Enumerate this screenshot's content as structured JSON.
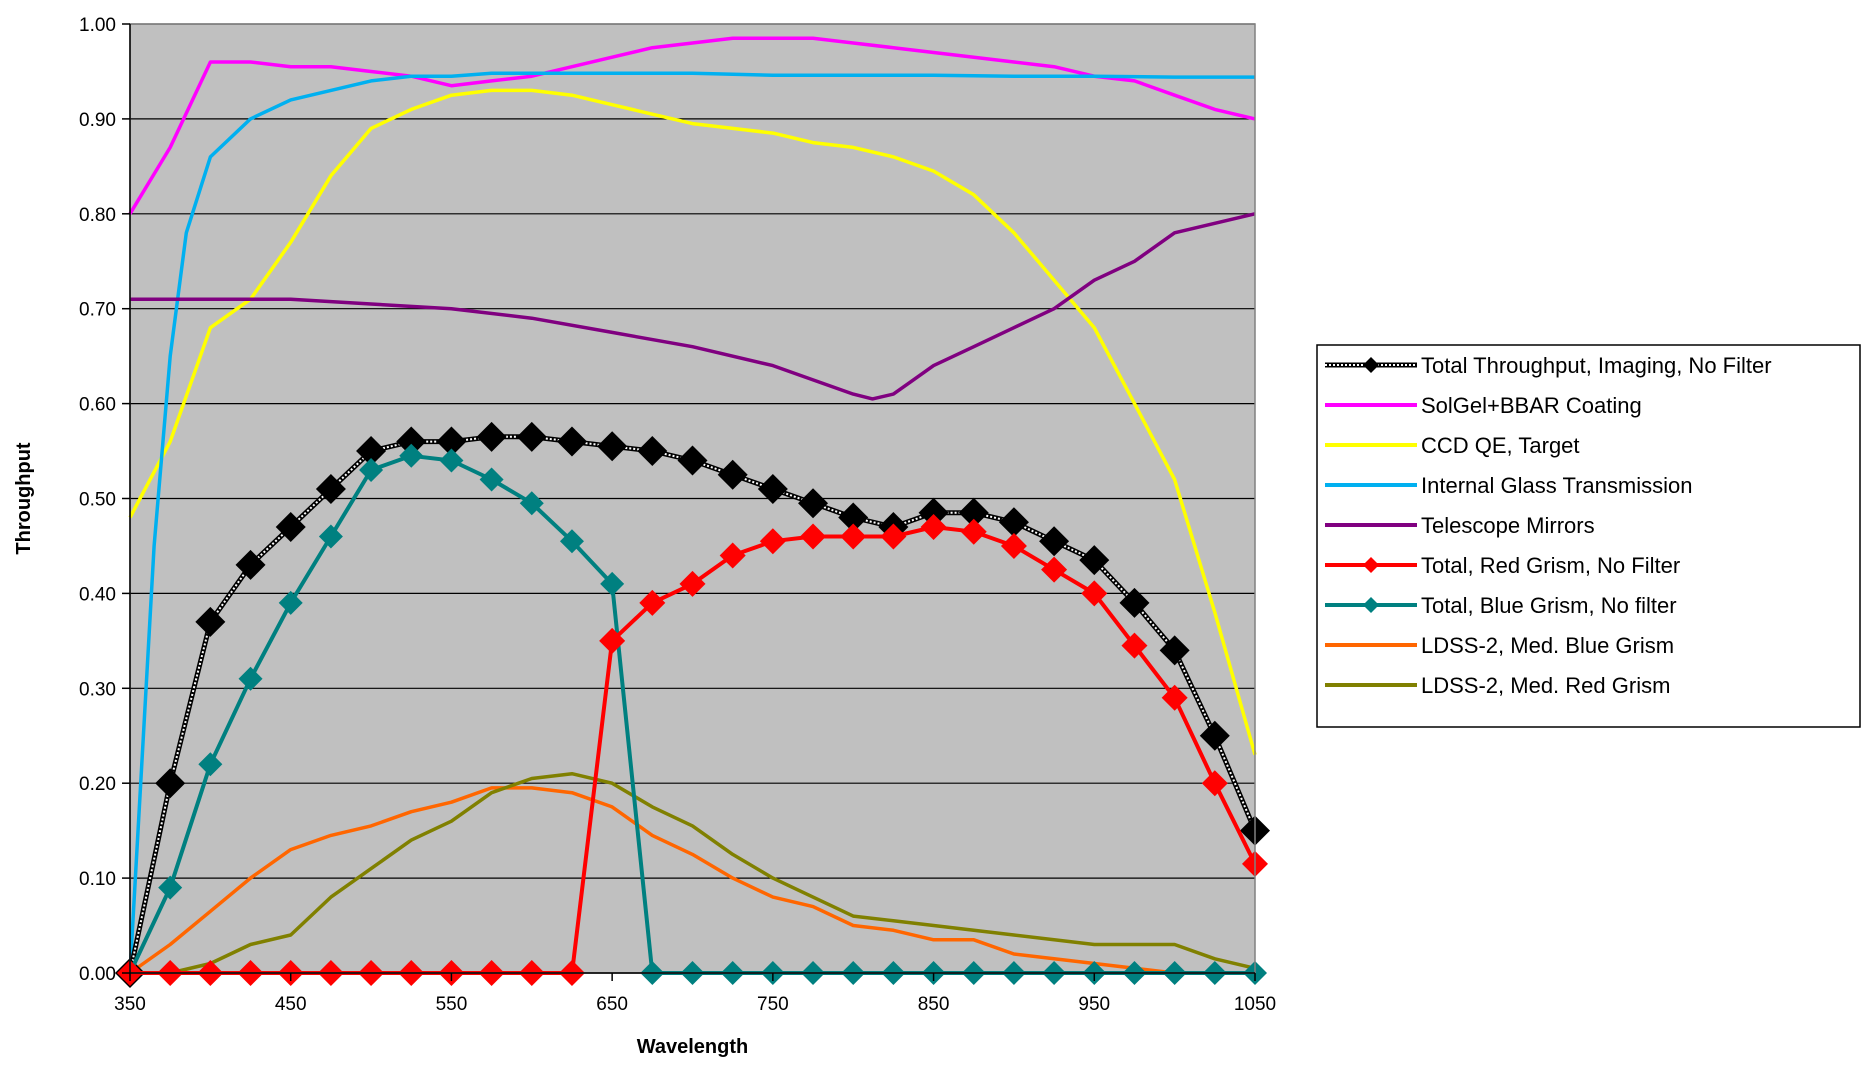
{
  "chart_data": {
    "type": "line",
    "title": "",
    "xlabel": "Wavelength",
    "ylabel": "Throughput",
    "xlim": [
      350,
      1050
    ],
    "ylim": [
      0,
      1
    ],
    "x_ticks": [
      "350",
      "450",
      "550",
      "650",
      "750",
      "850",
      "950",
      "1050"
    ],
    "y_ticks": [
      "0.00",
      "0.10",
      "0.20",
      "0.30",
      "0.40",
      "0.50",
      "0.60",
      "0.70",
      "0.80",
      "0.90",
      "1.00"
    ],
    "grid": "horizontal",
    "plot_background": "#c0c0c0",
    "legend_position": "right",
    "series": [
      {
        "name": "Total Throughput, Imaging, No Filter",
        "color": "#000000",
        "marker": "diamond",
        "marker_color": "#000000",
        "line_style": "dotted-double",
        "x": [
          350,
          375,
          400,
          425,
          450,
          475,
          500,
          525,
          550,
          575,
          600,
          625,
          650,
          675,
          700,
          725,
          750,
          775,
          800,
          825,
          850,
          875,
          900,
          925,
          950,
          975,
          1000,
          1025,
          1050
        ],
        "y": [
          0.0,
          0.2,
          0.37,
          0.43,
          0.47,
          0.51,
          0.55,
          0.56,
          0.56,
          0.565,
          0.565,
          0.56,
          0.555,
          0.55,
          0.54,
          0.525,
          0.51,
          0.495,
          0.48,
          0.47,
          0.485,
          0.485,
          0.475,
          0.455,
          0.435,
          0.39,
          0.34,
          0.25,
          0.15
        ]
      },
      {
        "name": "SolGel+BBAR Coating",
        "color": "#ff00ff",
        "marker": "none",
        "x": [
          350,
          375,
          400,
          425,
          450,
          475,
          500,
          525,
          550,
          575,
          600,
          625,
          650,
          675,
          700,
          725,
          750,
          775,
          800,
          825,
          850,
          875,
          900,
          925,
          950,
          975,
          1000,
          1025,
          1050
        ],
        "y": [
          0.8,
          0.87,
          0.96,
          0.96,
          0.955,
          0.955,
          0.95,
          0.945,
          0.935,
          0.94,
          0.945,
          0.955,
          0.965,
          0.975,
          0.98,
          0.985,
          0.985,
          0.985,
          0.98,
          0.975,
          0.97,
          0.965,
          0.96,
          0.955,
          0.945,
          0.94,
          0.925,
          0.91,
          0.9
        ]
      },
      {
        "name": "CCD QE, Target",
        "color": "#ffff00",
        "marker": "none",
        "x": [
          350,
          375,
          400,
          425,
          450,
          475,
          500,
          525,
          550,
          575,
          600,
          625,
          650,
          675,
          700,
          725,
          750,
          775,
          800,
          825,
          850,
          875,
          900,
          925,
          950,
          975,
          1000,
          1025,
          1050
        ],
        "y": [
          0.48,
          0.56,
          0.68,
          0.71,
          0.77,
          0.84,
          0.89,
          0.91,
          0.925,
          0.93,
          0.93,
          0.925,
          0.915,
          0.905,
          0.895,
          0.89,
          0.885,
          0.875,
          0.87,
          0.86,
          0.845,
          0.82,
          0.78,
          0.73,
          0.68,
          0.6,
          0.52,
          0.38,
          0.23
        ]
      },
      {
        "name": "Internal Glass Transmission",
        "color": "#00b0f0",
        "marker": "none",
        "x": [
          350,
          365,
          375,
          385,
          400,
          425,
          450,
          475,
          500,
          525,
          550,
          575,
          600,
          650,
          700,
          750,
          800,
          850,
          900,
          950,
          1000,
          1050
        ],
        "y": [
          0.0,
          0.45,
          0.65,
          0.78,
          0.86,
          0.9,
          0.92,
          0.93,
          0.94,
          0.945,
          0.945,
          0.948,
          0.948,
          0.948,
          0.948,
          0.946,
          0.946,
          0.946,
          0.945,
          0.945,
          0.944,
          0.944
        ]
      },
      {
        "name": "Telescope Mirrors",
        "color": "#800080",
        "marker": "none",
        "x": [
          350,
          400,
          450,
          500,
          550,
          600,
          650,
          700,
          750,
          775,
          800,
          812,
          825,
          850,
          875,
          900,
          925,
          950,
          975,
          1000,
          1025,
          1050
        ],
        "y": [
          0.71,
          0.71,
          0.71,
          0.705,
          0.7,
          0.69,
          0.675,
          0.66,
          0.64,
          0.625,
          0.61,
          0.605,
          0.61,
          0.64,
          0.66,
          0.68,
          0.7,
          0.73,
          0.75,
          0.78,
          0.79,
          0.8
        ]
      },
      {
        "name": "Total, Red Grism, No Filter",
        "color": "#ff0000",
        "marker": "diamond",
        "marker_color": "#ff0000",
        "x": [
          350,
          375,
          400,
          425,
          450,
          475,
          500,
          525,
          550,
          575,
          600,
          625,
          650,
          675,
          700,
          725,
          750,
          775,
          800,
          825,
          850,
          875,
          900,
          925,
          950,
          975,
          1000,
          1025,
          1050
        ],
        "y": [
          0,
          0,
          0,
          0,
          0,
          0,
          0,
          0,
          0,
          0,
          0,
          0,
          0.35,
          0.39,
          0.41,
          0.44,
          0.455,
          0.46,
          0.46,
          0.46,
          0.47,
          0.465,
          0.45,
          0.425,
          0.4,
          0.345,
          0.29,
          0.2,
          0.115
        ]
      },
      {
        "name": "Total, Blue Grism, No filter",
        "color": "#008080",
        "marker": "diamond",
        "marker_color": "#008080",
        "x": [
          350,
          375,
          400,
          425,
          450,
          475,
          500,
          525,
          550,
          575,
          600,
          625,
          650,
          675,
          700,
          725,
          750,
          775,
          800,
          825,
          850,
          875,
          900,
          925,
          950,
          975,
          1000,
          1025,
          1050
        ],
        "y": [
          0,
          0.09,
          0.22,
          0.31,
          0.39,
          0.46,
          0.53,
          0.545,
          0.54,
          0.52,
          0.495,
          0.455,
          0.41,
          0,
          0,
          0,
          0,
          0,
          0,
          0,
          0,
          0,
          0,
          0,
          0,
          0,
          0,
          0,
          0
        ]
      },
      {
        "name": "LDSS-2, Med. Blue Grism",
        "color": "#ff6600",
        "marker": "none",
        "x": [
          350,
          375,
          400,
          425,
          450,
          475,
          500,
          525,
          550,
          575,
          600,
          625,
          650,
          675,
          700,
          725,
          750,
          775,
          800,
          825,
          850,
          875,
          900,
          925,
          950,
          975,
          1000,
          1025,
          1050
        ],
        "y": [
          0.0,
          0.03,
          0.065,
          0.1,
          0.13,
          0.145,
          0.155,
          0.17,
          0.18,
          0.195,
          0.195,
          0.19,
          0.175,
          0.145,
          0.125,
          0.1,
          0.08,
          0.07,
          0.05,
          0.045,
          0.035,
          0.035,
          0.02,
          0.015,
          0.01,
          0.005,
          0.0,
          0.0,
          0.0
        ]
      },
      {
        "name": "LDSS-2, Med. Red Grism",
        "color": "#808000",
        "marker": "none",
        "x": [
          350,
          375,
          400,
          425,
          450,
          475,
          500,
          525,
          550,
          575,
          600,
          625,
          650,
          675,
          700,
          725,
          750,
          775,
          800,
          825,
          850,
          875,
          900,
          925,
          950,
          975,
          1000,
          1025,
          1050
        ],
        "y": [
          0.0,
          0.0,
          0.01,
          0.03,
          0.04,
          0.08,
          0.11,
          0.14,
          0.16,
          0.19,
          0.205,
          0.21,
          0.2,
          0.175,
          0.155,
          0.125,
          0.1,
          0.08,
          0.06,
          0.055,
          0.05,
          0.045,
          0.04,
          0.035,
          0.03,
          0.03,
          0.03,
          0.015,
          0.005
        ]
      }
    ]
  }
}
